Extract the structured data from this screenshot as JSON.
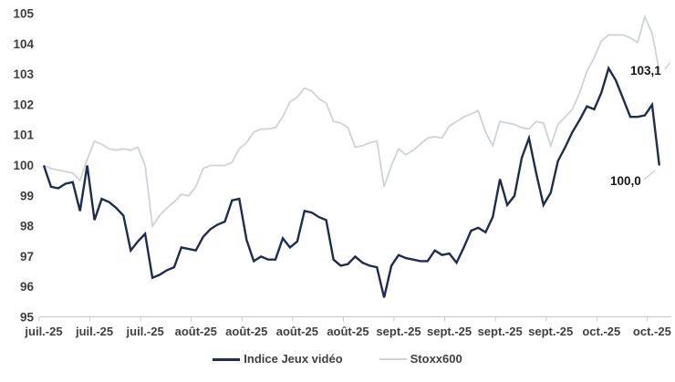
{
  "chart_data": {
    "type": "line",
    "title": "",
    "xlabel": "",
    "ylabel": "",
    "ylim": [
      95,
      105
    ],
    "y_ticks": [
      95,
      96,
      97,
      98,
      99,
      100,
      101,
      102,
      103,
      104,
      105
    ],
    "grid": false,
    "legend_position": "bottom",
    "x_tick_labels": [
      "juil.-25",
      "juil.-25",
      "juil.-25",
      "août-25",
      "août-25",
      "août-25",
      "août-25",
      "sept.-25",
      "sept.-25",
      "sept.-25",
      "sept.-25",
      "oct.-25",
      "oct.-25"
    ],
    "tick_every_n_points": 7,
    "series": [
      {
        "name": "Stoxx600",
        "color": "#ced3d8",
        "stroke_width": 1.8,
        "values": [
          100.0,
          99.9,
          99.85,
          99.8,
          99.75,
          99.5,
          100.2,
          100.8,
          100.7,
          100.55,
          100.5,
          100.55,
          100.5,
          100.6,
          100.0,
          98.0,
          98.35,
          98.6,
          98.8,
          99.05,
          99.0,
          99.3,
          99.9,
          100.0,
          100.0,
          100.0,
          100.1,
          100.55,
          100.75,
          101.1,
          101.2,
          101.2,
          101.25,
          101.6,
          102.1,
          102.25,
          102.55,
          102.45,
          102.2,
          102.05,
          101.45,
          101.4,
          101.25,
          100.6,
          100.65,
          100.75,
          100.8,
          99.3,
          100.0,
          100.55,
          100.35,
          100.5,
          100.7,
          100.9,
          100.95,
          100.9,
          101.3,
          101.45,
          101.6,
          101.7,
          101.8,
          101.1,
          100.65,
          101.45,
          101.4,
          101.35,
          101.25,
          101.2,
          101.45,
          101.4,
          100.65,
          101.35,
          101.6,
          101.85,
          102.4,
          103.1,
          103.55,
          104.1,
          104.3,
          104.3,
          104.3,
          104.2,
          104.05,
          104.9,
          104.35,
          103.1
        ],
        "end_label": "103,1"
      },
      {
        "name": "Indice Jeux vidéo",
        "color": "#1d2c4f",
        "stroke_width": 2.4,
        "values": [
          100.0,
          99.3,
          99.25,
          99.4,
          99.45,
          98.5,
          100.0,
          98.2,
          98.9,
          98.8,
          98.6,
          98.35,
          97.2,
          97.5,
          97.75,
          96.3,
          96.4,
          96.55,
          96.65,
          97.3,
          97.25,
          97.2,
          97.65,
          97.9,
          98.05,
          98.15,
          98.85,
          98.9,
          97.55,
          96.85,
          97.0,
          96.9,
          96.9,
          97.6,
          97.3,
          97.5,
          98.5,
          98.45,
          98.3,
          98.2,
          96.9,
          96.7,
          96.75,
          97.0,
          96.8,
          96.7,
          96.65,
          95.65,
          96.7,
          97.05,
          96.95,
          96.9,
          96.85,
          96.85,
          97.2,
          97.05,
          97.1,
          96.8,
          97.3,
          97.85,
          97.95,
          97.8,
          98.3,
          99.55,
          98.7,
          99.0,
          100.25,
          100.9,
          99.75,
          98.7,
          99.1,
          100.15,
          100.6,
          101.1,
          101.5,
          101.95,
          101.85,
          102.4,
          103.2,
          102.8,
          102.2,
          101.6,
          101.6,
          101.65,
          102.0,
          100.0
        ],
        "end_label": "100,0"
      }
    ]
  },
  "legend": {
    "items": [
      {
        "label": "Indice Jeux vidéo",
        "color": "#1d2c4f"
      },
      {
        "label": "Stoxx600",
        "color": "#ced3d8"
      }
    ]
  },
  "annotations": {
    "stoxx_end_value": "103,1",
    "indice_end_value": "100,0"
  },
  "colors": {
    "background": "#ffffff",
    "axis_line": "#c9c9c9",
    "axis_text": "#3f3f3f",
    "annotation_text": "#171717",
    "navy_series": "#1d2c4f",
    "gray_series": "#ced3d8"
  }
}
